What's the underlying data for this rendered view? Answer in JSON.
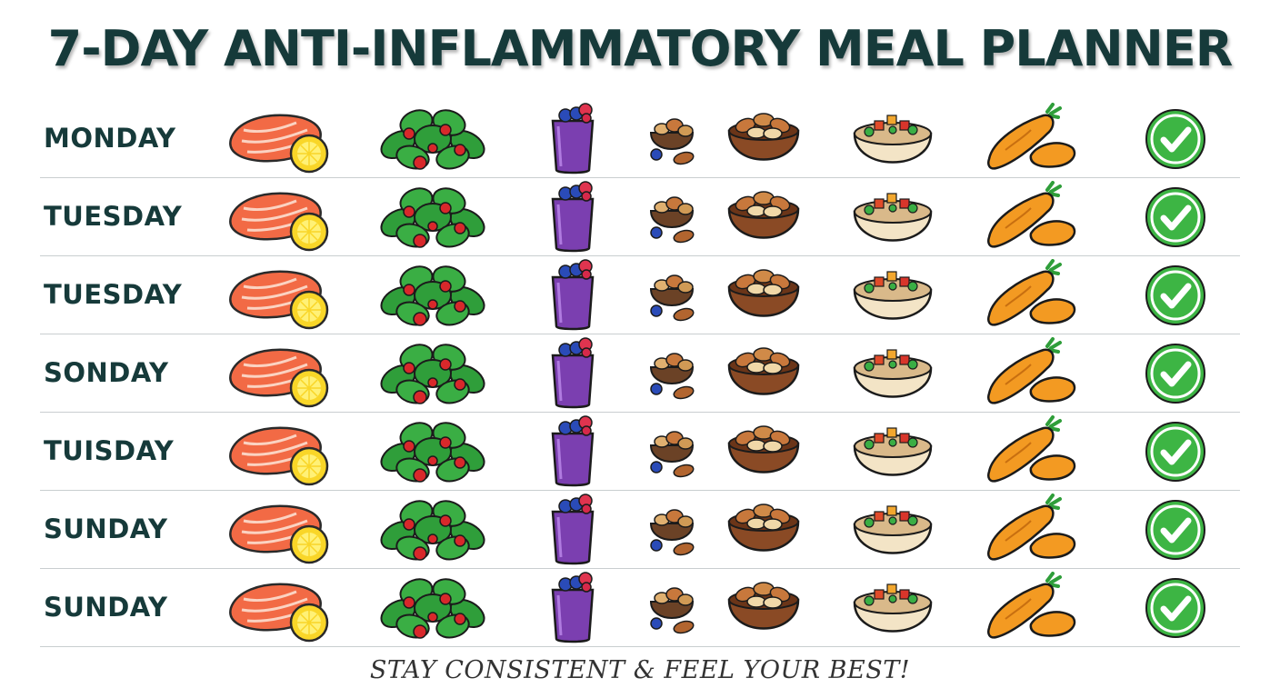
{
  "title": "7-DAY ANTI-INFLAMMATORY MEAL PLANNER",
  "days": [
    "MONDAY",
    "TUESDAY",
    "TUESDAY",
    "SONDAY",
    "TUISDAY",
    "SUNDAY",
    "SUNDAY"
  ],
  "row_icons": [
    "salmon-lemon-icon",
    "spinach-tomato-salad-icon",
    "berry-smoothie-icon",
    "mixed-nuts-berries-icon",
    "almond-bowl-icon",
    "quinoa-vegetable-bowl-icon",
    "sweet-potato-icon",
    "green-checkmark-icon"
  ],
  "footer": "STAY CONSISTENT & FEEL YOUR BEST!",
  "colors": {
    "title": "#163a3a",
    "check": "#3db544",
    "salmon": "#f26a45",
    "lemon": "#f9d628",
    "leaf": "#2f9e3a",
    "smoothie": "#7b3fb0",
    "nut": "#c8783c",
    "carrot": "#f39a22"
  }
}
